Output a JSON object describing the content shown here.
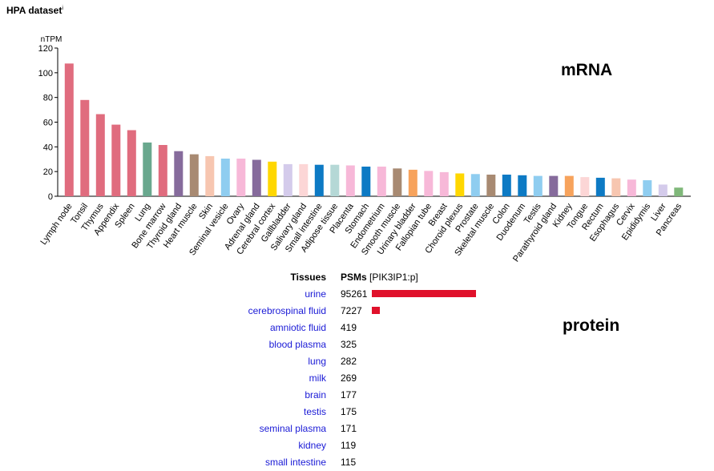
{
  "header": {
    "title": "HPA dataset",
    "title_sup": "i"
  },
  "labels": {
    "mrna": "mRNA",
    "protein": "protein"
  },
  "chart_data": {
    "type": "bar",
    "ylabel": "nTPM",
    "ylim": [
      0,
      120
    ],
    "yticks": [
      0,
      20,
      40,
      60,
      80,
      100,
      120
    ],
    "grid": false,
    "categories": [
      "Lymph node",
      "Tonsil",
      "Thymus",
      "Appendix",
      "Spleen",
      "Lung",
      "Bone marrow",
      "Thyroid gland",
      "Heart muscle",
      "Skin",
      "Seminal vesicle",
      "Ovary",
      "Adrenal gland",
      "Cerebral cortex",
      "Gallbladder",
      "Salivary gland",
      "Small intestine",
      "Adipose tissue",
      "Placenta",
      "Stomach",
      "Endometrium",
      "Smooth muscle",
      "Urinary bladder",
      "Fallopian tube",
      "Breast",
      "Choroid plexus",
      "Prostate",
      "Skeletal muscle",
      "Colon",
      "Duodenum",
      "Testis",
      "Parathyroid gland",
      "Kidney",
      "Tongue",
      "Rectum",
      "Esophagus",
      "Cervix",
      "Epididymis",
      "Liver",
      "Pancreas"
    ],
    "values": [
      107.5,
      78,
      66.5,
      58,
      53.5,
      43.5,
      41.5,
      36.5,
      34,
      32.5,
      30.5,
      30.5,
      29.5,
      28,
      26,
      26,
      25.5,
      25.5,
      25,
      24,
      24,
      22.5,
      21.5,
      20.5,
      19.5,
      18.5,
      18,
      17.5,
      17.5,
      17,
      16.5,
      16.5,
      16.5,
      15.5,
      15,
      14.5,
      13.5,
      13,
      9.5,
      7
    ],
    "colors": [
      "#e06c7e",
      "#e06c7e",
      "#e06c7e",
      "#e06c7e",
      "#e06c7e",
      "#69a88e",
      "#e06c7e",
      "#866b9c",
      "#a88a72",
      "#f7c6b0",
      "#8fcdf0",
      "#f7b8d8",
      "#866b9c",
      "#ffd700",
      "#d4cbeb",
      "#fcd6d6",
      "#0d7ac4",
      "#b5d8d6",
      "#f7b8d8",
      "#0d7ac4",
      "#f7b8d8",
      "#a88a72",
      "#f7a35c",
      "#f7b8d8",
      "#f7b8d8",
      "#ffd700",
      "#8fcdf0",
      "#a88a72",
      "#0d7ac4",
      "#0d7ac4",
      "#8fcdf0",
      "#866b9c",
      "#f7a35c",
      "#fcd6d6",
      "#0d7ac4",
      "#f7c6b0",
      "#f7b8d8",
      "#8fcdf0",
      "#d4cbeb",
      "#80b87a"
    ]
  },
  "protein_table": {
    "header_tissues": "Tissues",
    "header_psms": "PSMs",
    "header_id": "[PIK3IP1:p]",
    "bar_color": "#e0112b",
    "max_value": 95261,
    "rows": [
      {
        "tissue": "urine",
        "value": 95261
      },
      {
        "tissue": "cerebrospinal fluid",
        "value": 7227
      },
      {
        "tissue": "amniotic fluid",
        "value": 419
      },
      {
        "tissue": "blood plasma",
        "value": 325
      },
      {
        "tissue": "lung",
        "value": 282
      },
      {
        "tissue": "milk",
        "value": 269
      },
      {
        "tissue": "brain",
        "value": 177
      },
      {
        "tissue": "testis",
        "value": 175
      },
      {
        "tissue": "seminal plasma",
        "value": 171
      },
      {
        "tissue": "kidney",
        "value": 119
      },
      {
        "tissue": "small intestine",
        "value": 115
      }
    ]
  }
}
